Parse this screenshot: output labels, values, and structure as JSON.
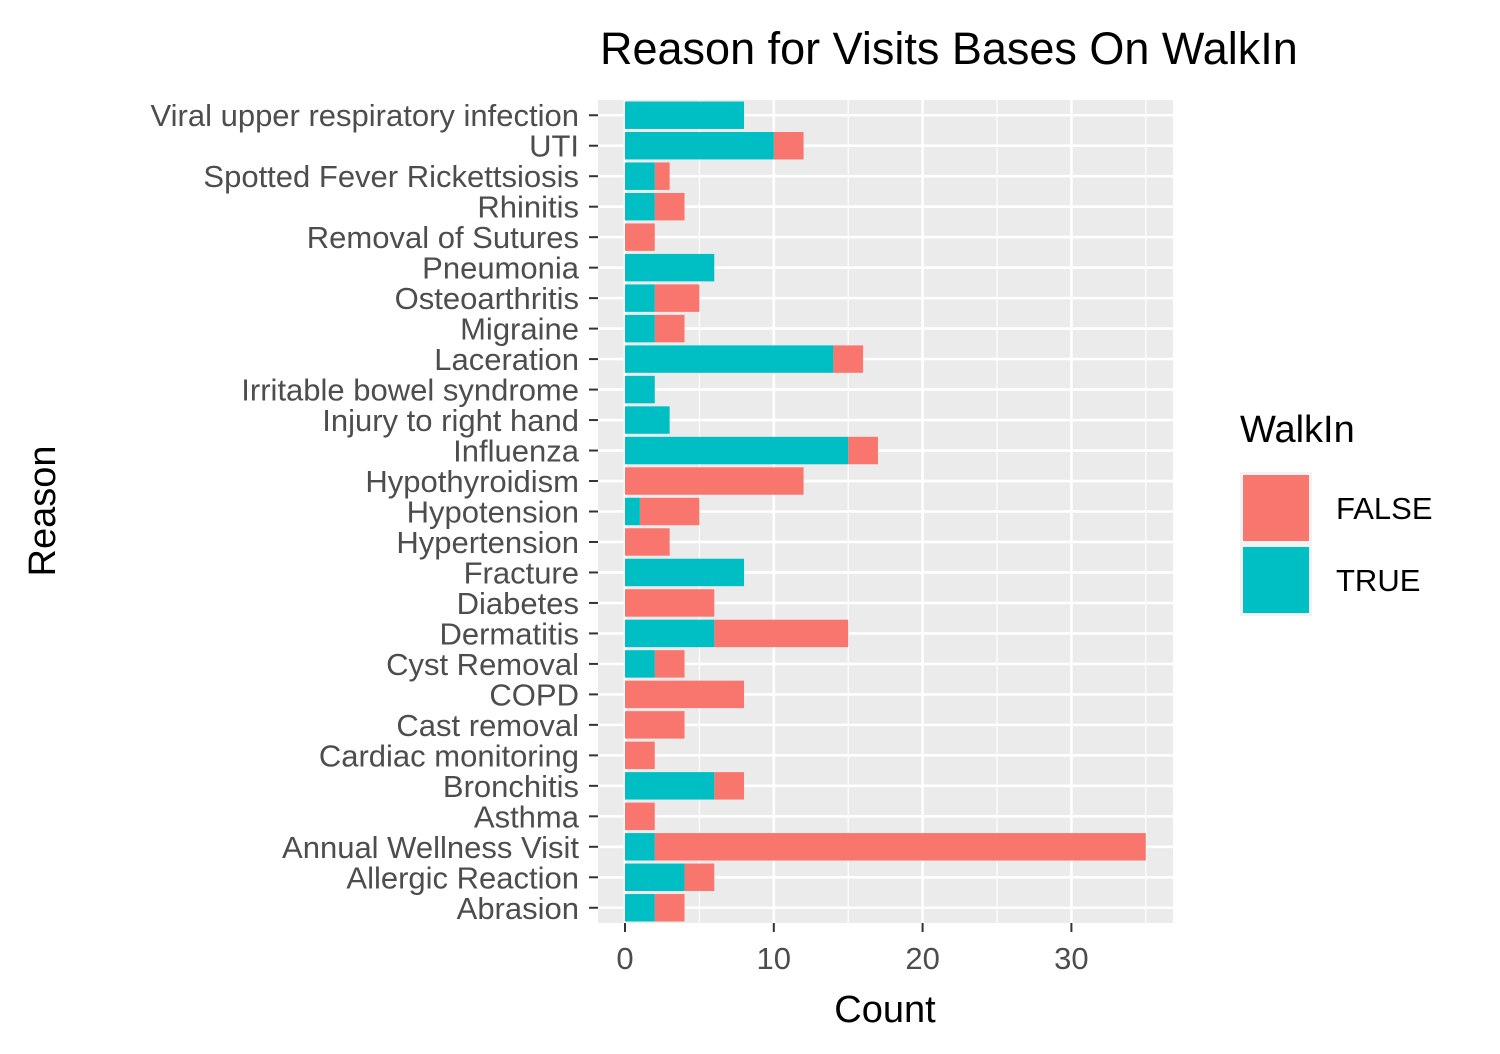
{
  "chart_data": {
    "type": "bar",
    "orientation": "horizontal",
    "stacked": true,
    "title": "Reason for Visits Bases On WalkIn",
    "xlabel": "Count",
    "ylabel": "Reason",
    "xlim": [
      0,
      36.75
    ],
    "xticks": [
      0,
      10,
      20,
      30
    ],
    "grid": true,
    "legend": {
      "title": "WalkIn",
      "position": "right"
    },
    "categories": [
      "Viral upper respiratory infection",
      "UTI",
      "Spotted Fever Rickettsiosis",
      "Rhinitis",
      "Removal of Sutures",
      "Pneumonia",
      "Osteoarthritis",
      "Migraine",
      "Laceration",
      "Irritable bowel syndrome",
      "Injury to right hand",
      "Influenza",
      "Hypothyroidism",
      "Hypotension",
      "Hypertension",
      "Fracture",
      "Diabetes",
      "Dermatitis",
      "Cyst Removal",
      "COPD",
      "Cast removal",
      "Cardiac monitoring",
      "Bronchitis",
      "Asthma",
      "Annual Wellness Visit",
      "Allergic Reaction",
      "Abrasion"
    ],
    "series": [
      {
        "name": "TRUE",
        "color": "#00bfc4",
        "values": [
          8,
          10,
          2,
          2,
          0,
          6,
          2,
          2,
          14,
          2,
          3,
          15,
          0,
          1,
          0,
          8,
          0,
          6,
          2,
          0,
          0,
          0,
          6,
          0,
          2,
          4,
          2
        ]
      },
      {
        "name": "FALSE",
        "color": "#f8766d",
        "values": [
          0,
          2,
          1,
          2,
          2,
          0,
          3,
          2,
          2,
          0,
          0,
          2,
          12,
          4,
          3,
          0,
          6,
          9,
          2,
          8,
          4,
          2,
          2,
          2,
          33,
          2,
          2
        ]
      }
    ]
  }
}
